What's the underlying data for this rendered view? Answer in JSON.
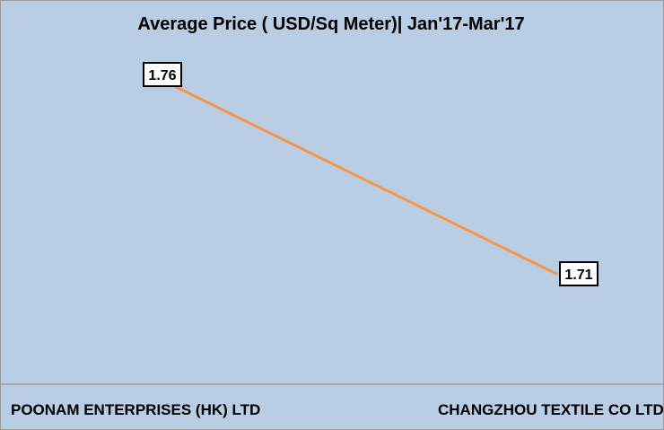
{
  "chart_data": {
    "type": "line",
    "title": "Average Price ( USD/Sq Meter)| Jan'17-Mar'17",
    "categories": [
      "POONAM ENTERPRISES (HK) LTD",
      "CHANGZHOU TEXTILE CO LTD"
    ],
    "series": [
      {
        "values": [
          1.76,
          1.71
        ],
        "data_labels": [
          "1.76",
          "1.71"
        ]
      }
    ],
    "xlabel": "",
    "ylabel": "",
    "grid": false,
    "legend": "none",
    "colors": {
      "line": "#f79646",
      "background": "#b9cde5",
      "axis": "#8c8c8c",
      "label_box_fill": "#ffffff",
      "label_box_border": "#000000"
    }
  }
}
